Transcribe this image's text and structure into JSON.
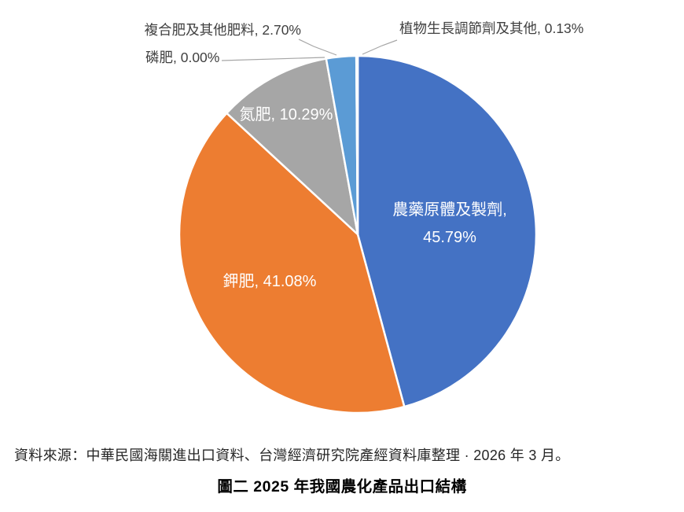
{
  "chart_data": {
    "type": "pie",
    "unit": "%",
    "start_angle": "top",
    "direction": "clockwise",
    "legend": "none",
    "slices": [
      {
        "key": "pesticides",
        "label": "農藥原體及製劑",
        "value_pct": 45.79,
        "value_label": "45.79%",
        "label_text": "農藥原體及製劑, 45.79%",
        "color": "#4472C4",
        "label_color": "#FFFFFF",
        "label_placement": "inside"
      },
      {
        "key": "potash",
        "label": "鉀肥",
        "value_pct": 41.08,
        "value_label": "41.08%",
        "label_text": "鉀肥, 41.08%",
        "color": "#ED7D31",
        "label_color": "#FFFFFF",
        "label_placement": "inside"
      },
      {
        "key": "nitrogen",
        "label": "氮肥",
        "value_pct": 10.29,
        "value_label": "10.29%",
        "label_text": "氮肥, 10.29%",
        "color": "#A6A6A6",
        "label_color": "#FFFFFF",
        "label_placement": "inside"
      },
      {
        "key": "phosphate",
        "label": "磷肥",
        "value_pct": 0.0,
        "value_label": "0.00%",
        "label_text": "磷肥, 0.00%",
        "color": "#FFC000",
        "label_color": "#404040",
        "label_placement": "outside"
      },
      {
        "key": "compound-fertilizer",
        "label": "複合肥及其他肥料",
        "value_pct": 2.7,
        "value_label": "2.70%",
        "label_text": "複合肥及其他肥料, 2.70%",
        "color": "#5B9BD5",
        "label_color": "#404040",
        "label_placement": "outside"
      },
      {
        "key": "growth-regulator",
        "label": "植物生長調節劑及其他",
        "value_pct": 0.13,
        "value_label": "0.13%",
        "label_text": "植物生長調節劑及其他, 0.13%",
        "color": "#70AD47",
        "label_color": "#404040",
        "label_placement": "outside"
      }
    ],
    "leader_line_color": "#A6A6A6",
    "slice_border_color": "#FFFFFF"
  },
  "source_note": "資料來源：中華民國海關進出口資料、台灣經濟研究院產經資料庫整理 · 2026 年 3 月。",
  "caption": "圖二  2025 年我國農化產品出口結構"
}
